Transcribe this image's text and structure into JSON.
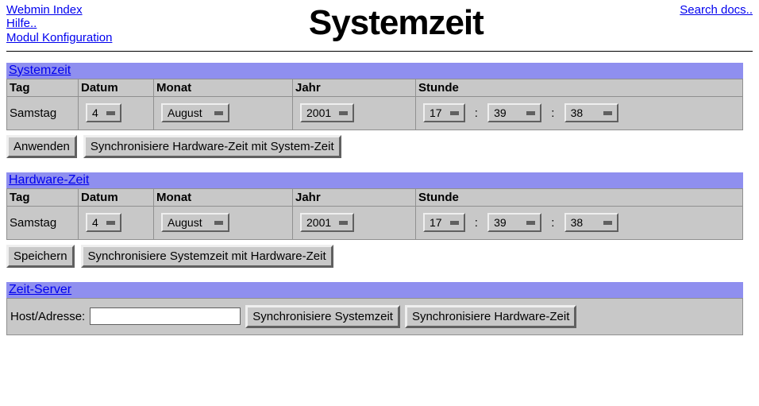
{
  "header": {
    "links": {
      "webmin_index": "Webmin Index",
      "help": "Hilfe..",
      "module_config": "Modul Konfiguration",
      "search_docs": "Search docs.."
    },
    "title": "Systemzeit"
  },
  "labels": {
    "tag": "Tag",
    "datum": "Datum",
    "monat": "Monat",
    "jahr": "Jahr",
    "stunde": "Stunde",
    "colon": ":"
  },
  "system_time": {
    "section_title": "Systemzeit",
    "day_name": "Samstag",
    "date": "4",
    "month": "August",
    "year": "2001",
    "hour": "17",
    "minute": "39",
    "second": "38",
    "apply_label": "Anwenden",
    "sync_label": "Synchronisiere Hardware-Zeit mit System-Zeit"
  },
  "hardware_time": {
    "section_title": "Hardware-Zeit",
    "day_name": "Samstag",
    "date": "4",
    "month": "August",
    "year": "2001",
    "hour": "17",
    "minute": "39",
    "second": "38",
    "save_label": "Speichern",
    "sync_label": "Synchronisiere Systemzeit mit Hardware-Zeit"
  },
  "time_server": {
    "section_title": "Zeit-Server",
    "host_label": "Host/Adresse:",
    "host_value": "",
    "sync_system_label": "Synchronisiere Systemzeit",
    "sync_hardware_label": "Synchronisiere Hardware-Zeit"
  },
  "colors": {
    "header_bg": "#8f8fef",
    "table_bg": "#c8c8c8",
    "link": "#0000ee"
  }
}
